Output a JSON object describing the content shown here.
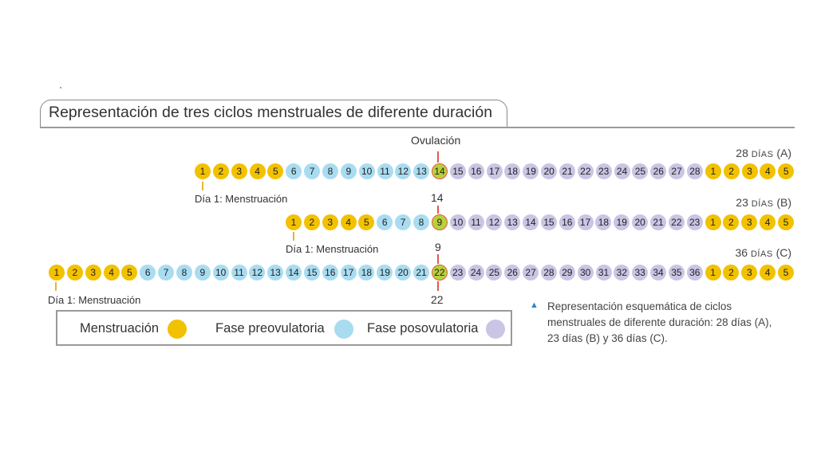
{
  "title": "Representación de tres ciclos menstruales de diferente duración",
  "ovulation_label": "Ovulación",
  "colors": {
    "menstruation": "#f2c100",
    "preovulatory": "#a9dcf0",
    "ovulation": "#b7d23a",
    "postovulatory": "#c9c5e4",
    "red_marker": "#e05a4a"
  },
  "cycles": [
    {
      "id": "A",
      "label_number": "28",
      "label_unit": "días",
      "label_letter": "(A)",
      "start_note": "Día 1: Menstruación",
      "ovulation_day": "14",
      "days": [
        {
          "n": "1",
          "phase": "m"
        },
        {
          "n": "2",
          "phase": "m"
        },
        {
          "n": "3",
          "phase": "m"
        },
        {
          "n": "4",
          "phase": "m"
        },
        {
          "n": "5",
          "phase": "m"
        },
        {
          "n": "6",
          "phase": "pre"
        },
        {
          "n": "7",
          "phase": "pre"
        },
        {
          "n": "8",
          "phase": "pre"
        },
        {
          "n": "9",
          "phase": "pre"
        },
        {
          "n": "10",
          "phase": "pre"
        },
        {
          "n": "11",
          "phase": "pre"
        },
        {
          "n": "12",
          "phase": "pre"
        },
        {
          "n": "13",
          "phase": "pre"
        },
        {
          "n": "14",
          "phase": "ov"
        },
        {
          "n": "15",
          "phase": "post"
        },
        {
          "n": "16",
          "phase": "post"
        },
        {
          "n": "17",
          "phase": "post"
        },
        {
          "n": "18",
          "phase": "post"
        },
        {
          "n": "19",
          "phase": "post"
        },
        {
          "n": "20",
          "phase": "post"
        },
        {
          "n": "21",
          "phase": "post"
        },
        {
          "n": "22",
          "phase": "post"
        },
        {
          "n": "23",
          "phase": "post"
        },
        {
          "n": "24",
          "phase": "post"
        },
        {
          "n": "25",
          "phase": "post"
        },
        {
          "n": "26",
          "phase": "post"
        },
        {
          "n": "27",
          "phase": "post"
        },
        {
          "n": "28",
          "phase": "post"
        },
        {
          "n": "1",
          "phase": "m"
        },
        {
          "n": "2",
          "phase": "m"
        },
        {
          "n": "3",
          "phase": "m"
        },
        {
          "n": "4",
          "phase": "m"
        },
        {
          "n": "5",
          "phase": "m"
        }
      ]
    },
    {
      "id": "B",
      "label_number": "23",
      "label_unit": "días",
      "label_letter": "(B)",
      "start_note": "Día 1: Menstruación",
      "ovulation_day": "9",
      "days": [
        {
          "n": "1",
          "phase": "m"
        },
        {
          "n": "2",
          "phase": "m"
        },
        {
          "n": "3",
          "phase": "m"
        },
        {
          "n": "4",
          "phase": "m"
        },
        {
          "n": "5",
          "phase": "m"
        },
        {
          "n": "6",
          "phase": "pre"
        },
        {
          "n": "7",
          "phase": "pre"
        },
        {
          "n": "8",
          "phase": "pre"
        },
        {
          "n": "9",
          "phase": "ov"
        },
        {
          "n": "10",
          "phase": "post"
        },
        {
          "n": "11",
          "phase": "post"
        },
        {
          "n": "12",
          "phase": "post"
        },
        {
          "n": "13",
          "phase": "post"
        },
        {
          "n": "14",
          "phase": "post"
        },
        {
          "n": "15",
          "phase": "post"
        },
        {
          "n": "16",
          "phase": "post"
        },
        {
          "n": "17",
          "phase": "post"
        },
        {
          "n": "18",
          "phase": "post"
        },
        {
          "n": "19",
          "phase": "post"
        },
        {
          "n": "20",
          "phase": "post"
        },
        {
          "n": "21",
          "phase": "post"
        },
        {
          "n": "22",
          "phase": "post"
        },
        {
          "n": "23",
          "phase": "post"
        },
        {
          "n": "1",
          "phase": "m"
        },
        {
          "n": "2",
          "phase": "m"
        },
        {
          "n": "3",
          "phase": "m"
        },
        {
          "n": "4",
          "phase": "m"
        },
        {
          "n": "5",
          "phase": "m"
        }
      ]
    },
    {
      "id": "C",
      "label_number": "36",
      "label_unit": "días",
      "label_letter": "(C)",
      "start_note": "Día 1: Menstruación",
      "ovulation_day": "22",
      "days": [
        {
          "n": "1",
          "phase": "m"
        },
        {
          "n": "2",
          "phase": "m"
        },
        {
          "n": "3",
          "phase": "m"
        },
        {
          "n": "4",
          "phase": "m"
        },
        {
          "n": "5",
          "phase": "m"
        },
        {
          "n": "6",
          "phase": "pre"
        },
        {
          "n": "7",
          "phase": "pre"
        },
        {
          "n": "8",
          "phase": "pre"
        },
        {
          "n": "9",
          "phase": "pre"
        },
        {
          "n": "10",
          "phase": "pre"
        },
        {
          "n": "11",
          "phase": "pre"
        },
        {
          "n": "12",
          "phase": "pre"
        },
        {
          "n": "13",
          "phase": "pre"
        },
        {
          "n": "14",
          "phase": "pre"
        },
        {
          "n": "15",
          "phase": "pre"
        },
        {
          "n": "16",
          "phase": "pre"
        },
        {
          "n": "17",
          "phase": "pre"
        },
        {
          "n": "18",
          "phase": "pre"
        },
        {
          "n": "19",
          "phase": "pre"
        },
        {
          "n": "20",
          "phase": "pre"
        },
        {
          "n": "21",
          "phase": "pre"
        },
        {
          "n": "22",
          "phase": "ov"
        },
        {
          "n": "23",
          "phase": "post"
        },
        {
          "n": "24",
          "phase": "post"
        },
        {
          "n": "25",
          "phase": "post"
        },
        {
          "n": "26",
          "phase": "post"
        },
        {
          "n": "27",
          "phase": "post"
        },
        {
          "n": "28",
          "phase": "post"
        },
        {
          "n": "29",
          "phase": "post"
        },
        {
          "n": "30",
          "phase": "post"
        },
        {
          "n": "31",
          "phase": "post"
        },
        {
          "n": "32",
          "phase": "post"
        },
        {
          "n": "33",
          "phase": "post"
        },
        {
          "n": "34",
          "phase": "post"
        },
        {
          "n": "35",
          "phase": "post"
        },
        {
          "n": "36",
          "phase": "post"
        },
        {
          "n": "1",
          "phase": "m"
        },
        {
          "n": "2",
          "phase": "m"
        },
        {
          "n": "3",
          "phase": "m"
        },
        {
          "n": "4",
          "phase": "m"
        },
        {
          "n": "5",
          "phase": "m"
        }
      ]
    }
  ],
  "legend": {
    "menstruation": "Menstruación",
    "preovulatory": "Fase preovulatoria",
    "postovulatory": "Fase posovulatoria"
  },
  "caption": "Representación esquemática de ciclos menstruales de diferente duración: 28 días (A), 23 días (B) y 36 días (C)."
}
